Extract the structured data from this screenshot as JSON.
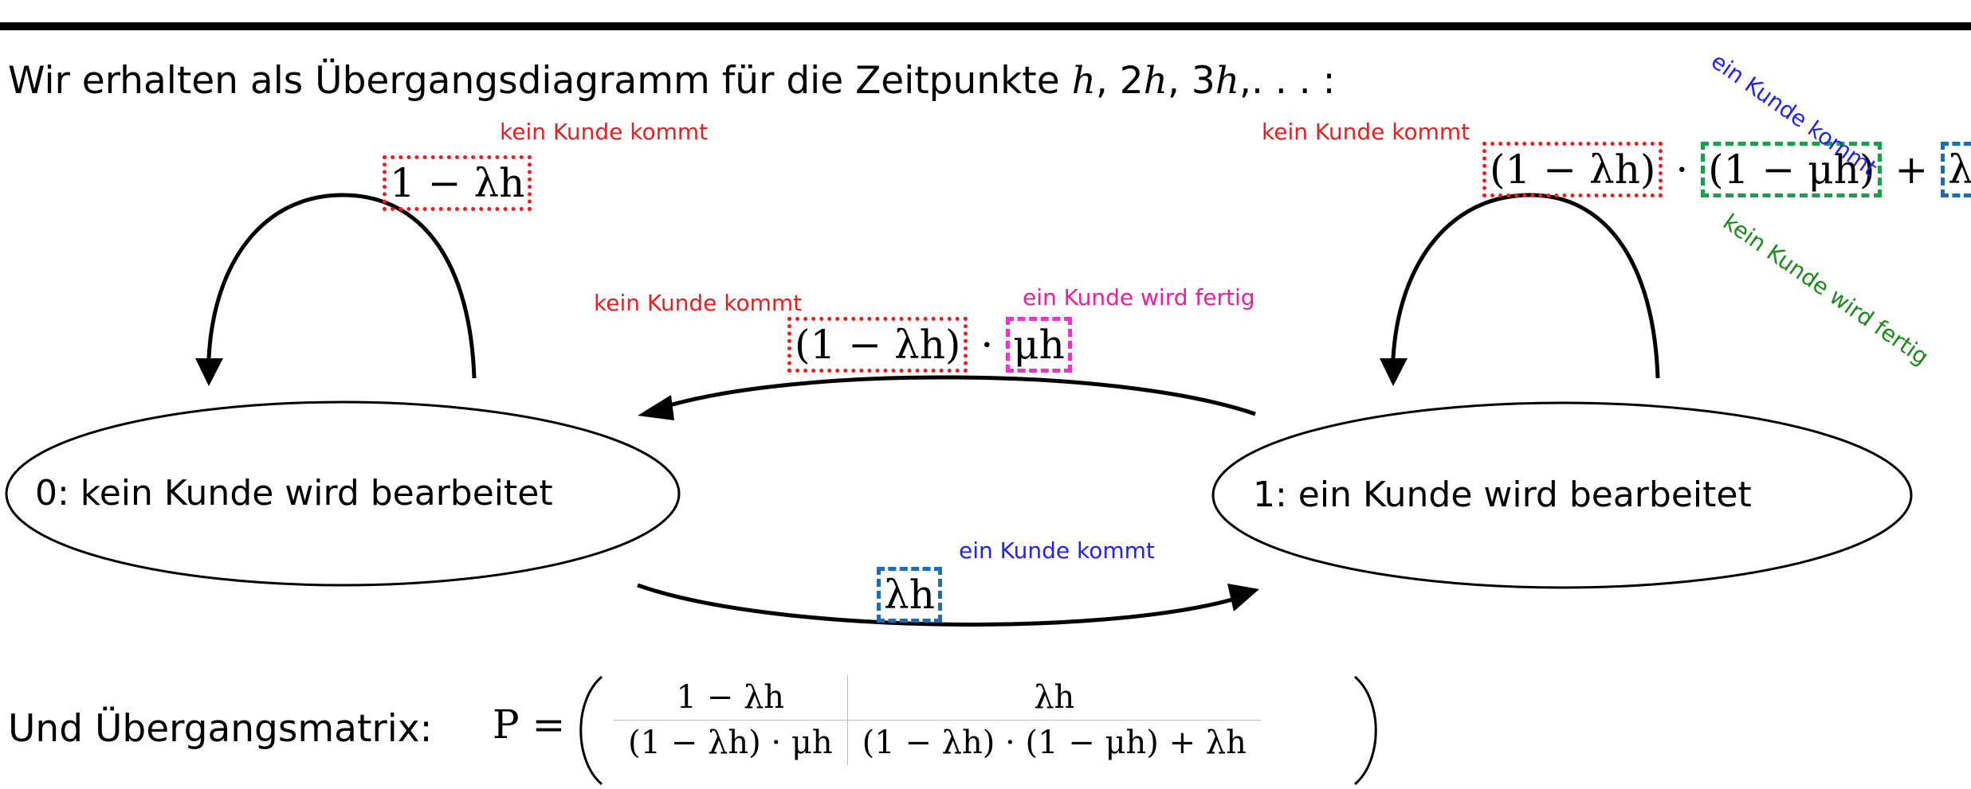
{
  "intro": {
    "prefix": "Wir erhalten als Übergangsdiagramm für die Zeitpunkte ",
    "h1": "h",
    "sep1": ", 2",
    "h2": "h",
    "sep2": ", 3",
    "h3": "h",
    "suffix": ",. . . :"
  },
  "states": {
    "s0": "0:  kein Kunde wird bearbeitet",
    "s1": "1:  ein Kunde wird bearbeitet"
  },
  "loop0": {
    "annotation": "kein Kunde kommt",
    "expr": "1 − λh"
  },
  "loop1": {
    "annotation_red": "kein Kunde kommt",
    "term1": "(1 − λh)",
    "dot": "·",
    "term2": "(1 − μh)",
    "plus": "+",
    "term3": "λh",
    "annotation_blue": "ein Kunde kommt",
    "annotation_green": "kein Kunde wird fertig"
  },
  "back": {
    "annotation_red": "kein Kunde kommt",
    "annotation_magenta": "ein Kunde wird fertig",
    "term1": "(1 − λh)",
    "dot": "·",
    "term2": "μh"
  },
  "forward": {
    "annotation": "ein Kunde kommt",
    "expr": "λh"
  },
  "matrix": {
    "label": "Und Übergangsmatrix:",
    "symbol": "P =",
    "cells": [
      [
        "1 − λh",
        "λh"
      ],
      [
        "(1 − λh) · μh",
        "(1 − λh) · (1 − μh) + λh"
      ]
    ]
  },
  "colors": {
    "red": "#ee1c1c",
    "blue": "#2222ee",
    "magenta": "#ee1c9e",
    "green": "#1a8a1a",
    "box_blue": "#1a6eb8",
    "box_green": "#1aa04a"
  }
}
